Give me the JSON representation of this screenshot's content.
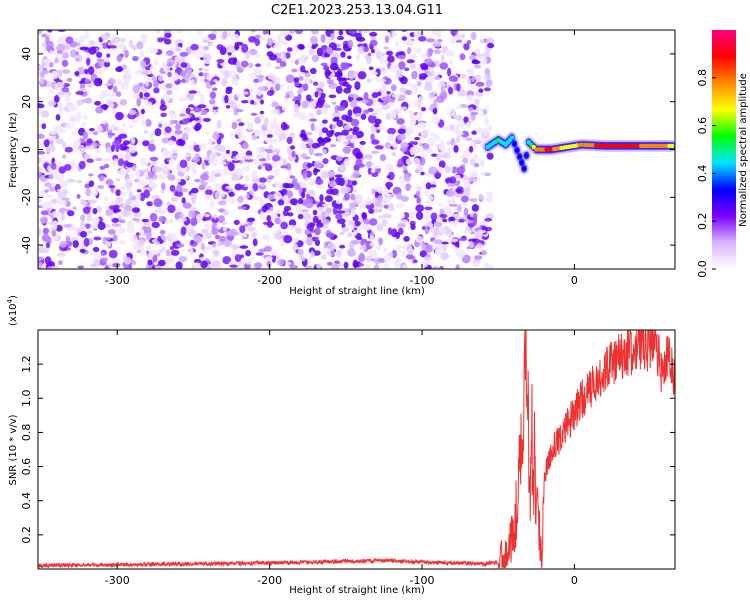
{
  "title": "C2E1.2023.253.13.04.G11",
  "chart_data": [
    {
      "type": "heatmap",
      "xlabel": "Height of straight line (km)",
      "ylabel": "Frequency (Hz)",
      "xlim": [
        -352,
        66
      ],
      "ylim": [
        -50,
        50
      ],
      "xticks": [
        -300,
        -200,
        -100,
        0
      ],
      "yticks": [
        -40,
        -20,
        0,
        20,
        40
      ],
      "colorbar": {
        "label": "Normalized spectral amplitude",
        "range": [
          0,
          1
        ],
        "ticks": [
          "0.0",
          "0.2",
          "0.4",
          "0.6",
          "0.8"
        ],
        "colors": [
          "#ffffff",
          "#d9b3ff",
          "#7a00ff",
          "#0000ff",
          "#00e5ff",
          "#00ff00",
          "#ffff00",
          "#ff8800",
          "#ff0000",
          "#ff0080"
        ]
      },
      "noise_region_x": [
        -352,
        -55
      ],
      "signal_track": [
        {
          "x": -57,
          "y": 1,
          "a": 0.45
        },
        {
          "x": -50,
          "y": 4,
          "a": 0.5
        },
        {
          "x": -45,
          "y": 2,
          "a": 0.45
        },
        {
          "x": -41,
          "y": 5,
          "a": 0.4
        },
        {
          "x": -36,
          "y": -3,
          "a": 0.35
        },
        {
          "x": -33,
          "y": -8,
          "a": 0.3
        },
        {
          "x": -30,
          "y": 3,
          "a": 0.45
        },
        {
          "x": -25,
          "y": 0,
          "a": 0.8
        },
        {
          "x": -15,
          "y": 0,
          "a": 0.85
        },
        {
          "x": -5,
          "y": 1,
          "a": 0.65
        },
        {
          "x": 5,
          "y": 2,
          "a": 0.75
        },
        {
          "x": 20,
          "y": 1.5,
          "a": 0.9
        },
        {
          "x": 40,
          "y": 1.5,
          "a": 0.85
        },
        {
          "x": 66,
          "y": 1.5,
          "a": 0.7
        }
      ]
    },
    {
      "type": "line",
      "xlabel": "Height of straight line (km)",
      "ylabel": "SNR (10 * v/v)",
      "yscale_label": "(x10",
      "yscale_exp": "4",
      "yscale_close": ")",
      "xlim": [
        -352,
        66
      ],
      "ylim": [
        0,
        1.4
      ],
      "xticks": [
        -300,
        -200,
        -100,
        0
      ],
      "yticks": [
        "0.2",
        "0.4",
        "0.6",
        "0.8",
        "1.0",
        "1.2"
      ],
      "color": "#f03030",
      "series": [
        {
          "x": [
            -352,
            -300,
            -250,
            -200,
            -150,
            -120,
            -100,
            -80,
            -60,
            -50,
            -45,
            -40,
            -38,
            -36,
            -34,
            -32,
            -31,
            -30,
            -29,
            -28,
            -27,
            -26,
            -25,
            -24,
            -23,
            -22,
            -21,
            -20,
            -18,
            -15,
            -10,
            -5,
            0,
            5,
            10,
            15,
            20,
            25,
            30,
            35,
            40,
            45,
            50,
            55,
            58,
            60,
            63,
            66
          ],
          "y": [
            0.02,
            0.025,
            0.03,
            0.035,
            0.045,
            0.05,
            0.04,
            0.035,
            0.03,
            0.04,
            0.1,
            0.2,
            0.35,
            0.55,
            0.75,
            1.2,
            1.35,
            0.8,
            0.5,
            0.9,
            0.3,
            0.7,
            0.25,
            0.6,
            0.2,
            0.1,
            0.05,
            0.55,
            0.6,
            0.7,
            0.75,
            0.85,
            0.9,
            1.0,
            1.05,
            1.1,
            1.15,
            1.2,
            1.25,
            1.28,
            1.3,
            1.32,
            1.3,
            1.28,
            1.1,
            1.25,
            1.2,
            1.1
          ]
        }
      ]
    }
  ]
}
